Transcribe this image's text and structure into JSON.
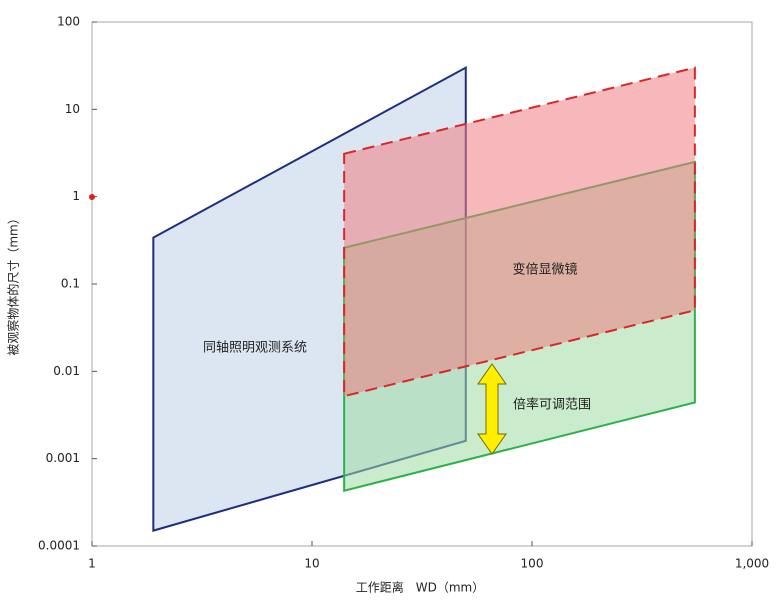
{
  "chart_data": {
    "type": "polygon",
    "x_label": "工作距离　WD（mm）",
    "y_label": "被观察物体的尺寸（mm）",
    "xscale": "log",
    "yscale": "log",
    "xlim": [
      1,
      1000
    ],
    "ylim": [
      0.0001,
      100
    ],
    "xticks": [
      1,
      10,
      100,
      {
        "value": 1000,
        "label": "1,000"
      }
    ],
    "yticks": [
      0.0001,
      0.001,
      0.01,
      0.1,
      1,
      10,
      100
    ],
    "series": [
      {
        "color": "#1f2d7f",
        "fill": "#dce6f3",
        "dashed": false,
        "x": [
          1.9,
          50,
          50,
          1.9
        ],
        "y": [
          0.34,
          30,
          0.0016,
          0.00015
        ]
      },
      {
        "color": "#2ab24a",
        "fill": "#9fdba3",
        "dashed": false,
        "x": [
          14,
          550,
          550,
          14
        ],
        "y": [
          0.26,
          2.5,
          0.0044,
          0.00043
        ]
      },
      {
        "color": "#d9262a",
        "fill": "#ee7d82",
        "dashed": true,
        "x": [
          14,
          550,
          550,
          14
        ],
        "y": [
          3.1,
          30,
          0.05,
          0.0052
        ]
      }
    ],
    "annotations": [
      "同轴照明观测系统",
      "变倍显微镜",
      "倍率可调范围"
    ]
  }
}
